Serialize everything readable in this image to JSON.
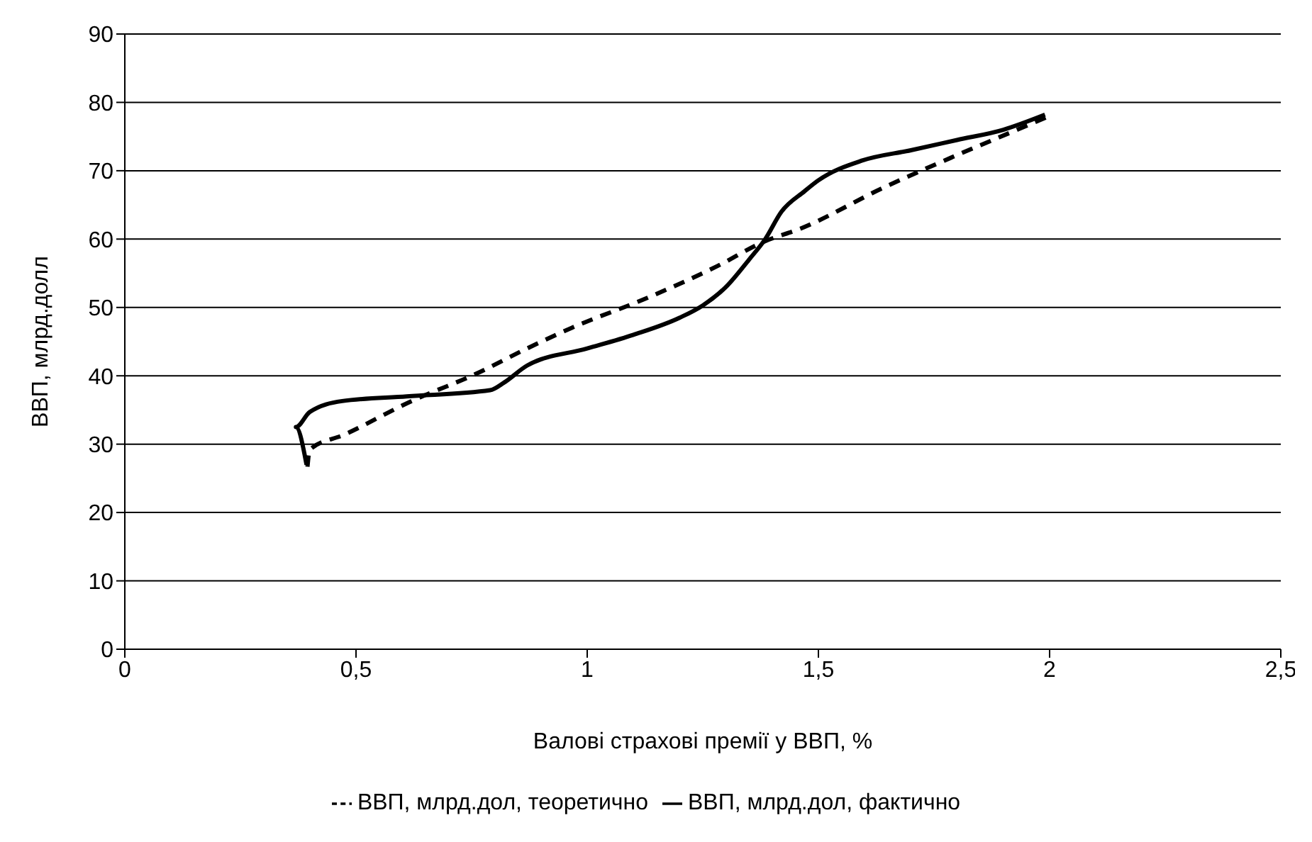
{
  "chart_data": {
    "type": "line",
    "xlabel": "Валові страхові премії у ВВП, %",
    "ylabel": "ВВП, млрд.долл",
    "xlim": [
      0,
      2.5
    ],
    "xticks": [
      0,
      {
        "value": 0.5,
        "label": "0,5"
      },
      1,
      {
        "value": 1.5,
        "label": "1,5"
      },
      2,
      {
        "value": 2.5,
        "label": "2,5"
      }
    ],
    "ylim": [
      0,
      90
    ],
    "yticks": [
      0,
      10,
      20,
      30,
      40,
      50,
      60,
      70,
      80,
      90
    ],
    "grid": "y",
    "legend": "bottom",
    "marker": "none",
    "series": [
      {
        "name": "ВВП, млрд.дол, фактично",
        "color": "#000000",
        "line_style": "solid",
        "x": [
          0.393,
          0.37,
          0.4,
          0.47,
          0.61,
          0.79,
          0.82,
          0.87,
          1.0,
          1.1,
          1.2,
          1.25,
          1.3,
          1.35,
          1.385,
          1.42,
          1.47,
          1.5,
          1.595,
          1.7,
          1.8,
          1.9,
          1.99
        ],
        "values": [
          27,
          32.5,
          34.7,
          36.3,
          37,
          37.9,
          39,
          41.5,
          44,
          46,
          48.5,
          50.3,
          53,
          57,
          60,
          64,
          67,
          68.6,
          71.5,
          73,
          74.5,
          76,
          78.2
        ]
      },
      {
        "name": "ВВП, млрд.дол, теоретично",
        "color": "#000000",
        "line_style": "dashed",
        "x": [
          0.395,
          0.4,
          0.475,
          0.62,
          0.76,
          0.87,
          0.966,
          1.13,
          1.28,
          1.385,
          1.46,
          1.64,
          1.79,
          1.93,
          2.0
        ],
        "values": [
          26.7,
          29.2,
          31.4,
          36.3,
          40.3,
          44,
          47,
          51.4,
          56,
          59.7,
          61.5,
          67.5,
          72,
          76,
          78
        ]
      }
    ]
  }
}
